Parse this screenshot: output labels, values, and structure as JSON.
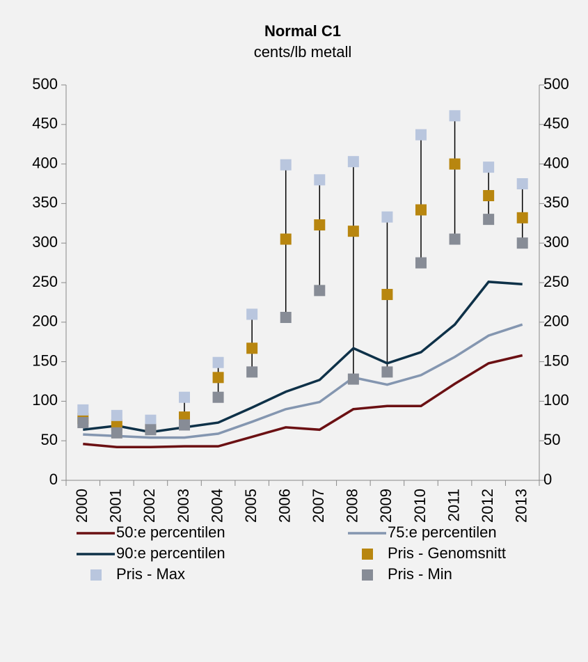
{
  "chart_data": {
    "type": "line",
    "title": "Normal C1",
    "subtitle": "cents/lb metall",
    "categories": [
      "2000",
      "2001",
      "2002",
      "2003",
      "2004",
      "2005",
      "2006",
      "2007",
      "2008",
      "2009",
      "2010",
      "2011",
      "2012",
      "2013"
    ],
    "series": [
      {
        "name": "50:e percentilen",
        "kind": "line",
        "color": "#6b1013",
        "values": [
          46,
          42,
          42,
          43,
          43,
          55,
          67,
          64,
          90,
          94,
          94,
          122,
          148,
          158
        ]
      },
      {
        "name": "75:e percentilen",
        "kind": "line",
        "color": "#8496b0",
        "values": [
          58,
          56,
          54,
          54,
          59,
          74,
          90,
          99,
          130,
          121,
          133,
          156,
          183,
          197
        ]
      },
      {
        "name": "90:e percentilen",
        "kind": "line",
        "color": "#0e3148",
        "values": [
          64,
          69,
          61,
          67,
          73,
          92,
          112,
          127,
          167,
          148,
          162,
          197,
          251,
          248
        ]
      },
      {
        "name": "Pris - Genomsnitt",
        "kind": "marker",
        "color": "#b8860f",
        "values": [
          78,
          70,
          65,
          80,
          130,
          167,
          305,
          323,
          315,
          235,
          342,
          400,
          360,
          332
        ]
      },
      {
        "name": "Pris - Max",
        "kind": "marker",
        "color": "#b9c6de",
        "values": [
          89,
          82,
          76,
          105,
          149,
          210,
          399,
          380,
          403,
          333,
          437,
          461,
          396,
          375
        ]
      },
      {
        "name": "Pris - Min",
        "kind": "marker",
        "color": "#878c96",
        "values": [
          73,
          60,
          64,
          70,
          105,
          137,
          206,
          240,
          128,
          137,
          275,
          305,
          330,
          300
        ]
      }
    ],
    "range_lines": true,
    "ylim": [
      0,
      500
    ],
    "yticks": [
      0,
      50,
      100,
      150,
      200,
      250,
      300,
      350,
      400,
      450,
      500
    ],
    "y2lim": [
      0,
      500
    ],
    "y2ticks": [
      0,
      50,
      100,
      150,
      200,
      250,
      300,
      350,
      400,
      450,
      500
    ]
  }
}
